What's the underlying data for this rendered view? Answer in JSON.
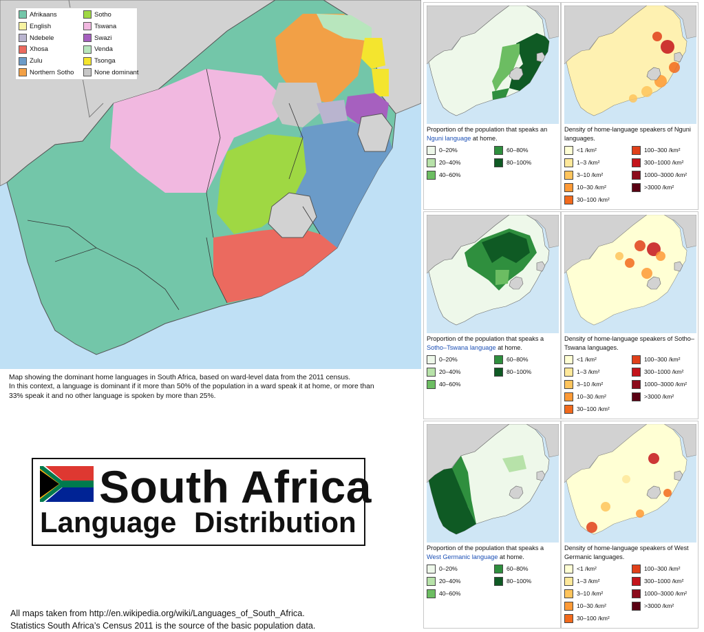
{
  "legend": {
    "items": [
      {
        "label": "Afrikaans",
        "color": "#73c6a9"
      },
      {
        "label": "English",
        "color": "#f7f3a1"
      },
      {
        "label": "Ndebele",
        "color": "#b9b4cf"
      },
      {
        "label": "Xhosa",
        "color": "#eb6a5f"
      },
      {
        "label": "Zulu",
        "color": "#6b9bc8"
      },
      {
        "label": "Northern Sotho",
        "color": "#f2a046"
      },
      {
        "label": "Sotho",
        "color": "#9fd843"
      },
      {
        "label": "Tswana",
        "color": "#f1b8e0"
      },
      {
        "label": "Swazi",
        "color": "#a660bf"
      },
      {
        "label": "Venda",
        "color": "#b8e6bd"
      },
      {
        "label": "Tsonga",
        "color": "#f4e52e"
      },
      {
        "label": "None dominant",
        "color": "#c7c7c7"
      }
    ]
  },
  "caption": {
    "line1": "Map showing the dominant home languages in South Africa, based on ward-level data from the 2011 census.",
    "line2": "In this context, a language is dominant if it more than 50% of the population in a ward speak it at home, or more than",
    "line3": "33% speak it and no other language is spoken by more than 25%."
  },
  "title": {
    "main": "South Africa",
    "sub": "Language Distribution"
  },
  "footer": {
    "line1": "All maps taken from http://en.wikipedia.org/wiki/Languages_of_South_Africa.",
    "line2": "Statistics South Africa’s Census 2011 is the source of the basic population data."
  },
  "proportion_legend": [
    "0–20%",
    "20–40%",
    "40–60%",
    "60–80%",
    "80–100%"
  ],
  "proportion_colors": [
    "#eef8ea",
    "#b7e2a9",
    "#6cbd62",
    "#2f8f3e",
    "#0f5a24"
  ],
  "density_legend": [
    "<1 /km²",
    "1–3 /km²",
    "3–10 /km²",
    "10–30 /km²",
    "30–100 /km²",
    "100–300 /km²",
    "300–1000 /km²",
    "1000–3000 /km²",
    ">3000 /km²"
  ],
  "density_colors": [
    "#ffffd4",
    "#fee89a",
    "#fec45c",
    "#fe9a36",
    "#f26a1c",
    "#e0401a",
    "#c4141b",
    "#8c0b1c",
    "#5a0013"
  ],
  "panels": {
    "nguni": {
      "prop_title_pre": "Proportion of the population that speaks an",
      "prop_link": "Nguni language",
      "prop_title_post": " at home.",
      "dens_title": "Density of home-language speakers of Nguni languages."
    },
    "sotho": {
      "prop_title_pre": "Proportion of the population that speaks a",
      "prop_link": "Sotho–Tswana language",
      "prop_title_post": " at home.",
      "dens_title": "Density of home-language speakers of Sotho–Tswana languages."
    },
    "west": {
      "prop_title_pre": "Proportion of the population that speaks a",
      "prop_link": "West Germanic language",
      "prop_title_post": " at home.",
      "dens_title": "Density of home-language speakers of West Germanic languages."
    }
  }
}
